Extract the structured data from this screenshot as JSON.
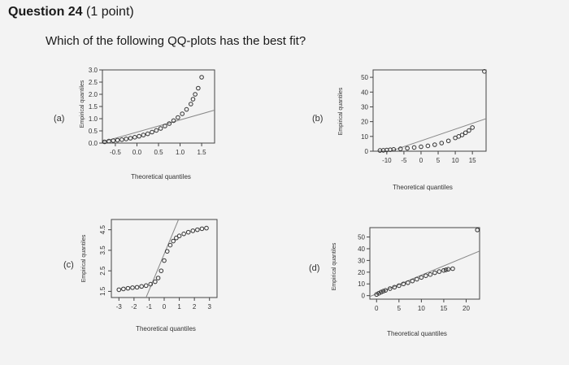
{
  "question": {
    "title": "Question 24",
    "points": "(1 point)",
    "text": "Which of the following QQ-plots has the best fit?"
  },
  "options": [
    "(a)",
    "(b)",
    "(c)",
    "(d)"
  ],
  "colors": {
    "background": "#f3f3f3",
    "points": "#333333",
    "reference_line": "#888888"
  },
  "chart_data": [
    {
      "type": "scatter",
      "option": "(a)",
      "xlabel": "Theoretical quantiles",
      "ylabel": "Empirical quantiles",
      "xlim": [
        -0.8,
        1.8
      ],
      "ylim": [
        0.0,
        3.0
      ],
      "xticks": [
        "-0.5",
        "0.0",
        "0.5",
        "1.0",
        "1.5"
      ],
      "yticks": [
        "0.0",
        "0.5",
        "1.0",
        "1.5",
        "2.0",
        "2.5",
        "3.0"
      ],
      "line": {
        "x": [
          -0.8,
          1.8
        ],
        "y": [
          0.05,
          1.35
        ]
      },
      "points": {
        "x": [
          -0.75,
          -0.65,
          -0.55,
          -0.45,
          -0.35,
          -0.25,
          -0.15,
          -0.05,
          0.05,
          0.15,
          0.25,
          0.35,
          0.45,
          0.55,
          0.65,
          0.75,
          0.85,
          0.95,
          1.05,
          1.15,
          1.25,
          1.3,
          1.35,
          1.42,
          1.5
        ],
        "y": [
          0.05,
          0.08,
          0.1,
          0.12,
          0.14,
          0.17,
          0.2,
          0.24,
          0.28,
          0.33,
          0.38,
          0.45,
          0.52,
          0.6,
          0.7,
          0.8,
          0.92,
          1.05,
          1.2,
          1.38,
          1.6,
          1.8,
          2.0,
          2.25,
          2.7
        ]
      }
    },
    {
      "type": "scatter",
      "option": "(b)",
      "xlabel": "Theoretical quantiles",
      "ylabel": "Empirical quantiles",
      "xlim": [
        -14,
        19
      ],
      "ylim": [
        0,
        55
      ],
      "xticks": [
        "-10",
        "-5",
        "0",
        "5",
        "10",
        "15"
      ],
      "yticks": [
        "0",
        "10",
        "20",
        "30",
        "40",
        "50"
      ],
      "line": {
        "x": [
          -14,
          19
        ],
        "y": [
          -4,
          22
        ]
      },
      "points": {
        "x": [
          -12,
          -11,
          -10,
          -9,
          -8,
          -6,
          -4,
          -2,
          0,
          2,
          4,
          6,
          8,
          10,
          11,
          12,
          13,
          14,
          15,
          18.5
        ],
        "y": [
          0.5,
          0.6,
          0.8,
          1,
          1.2,
          1.6,
          2,
          2.5,
          3,
          3.6,
          4.4,
          5.5,
          7,
          9,
          10,
          11,
          12.5,
          14,
          16,
          54
        ]
      }
    },
    {
      "type": "scatter",
      "option": "(c)",
      "xlabel": "Theoretical quantiles",
      "ylabel": "Empirical quantiles",
      "xlim": [
        -3.5,
        3.5
      ],
      "ylim": [
        1.2,
        5.0
      ],
      "xticks": [
        "-3",
        "-2",
        "-1",
        "0",
        "1",
        "2",
        "3"
      ],
      "yticks": [
        "1.5",
        "2.5",
        "3.5",
        "4.5"
      ],
      "line": {
        "x": [
          -1.2,
          0.95
        ],
        "y": [
          1.2,
          5.0
        ]
      },
      "points": {
        "x": [
          -3,
          -2.7,
          -2.4,
          -2.1,
          -1.8,
          -1.5,
          -1.2,
          -0.9,
          -0.6,
          -0.4,
          -0.2,
          0,
          0.2,
          0.4,
          0.6,
          0.8,
          1.0,
          1.3,
          1.6,
          1.9,
          2.2,
          2.5,
          2.8
        ],
        "y": [
          1.58,
          1.62,
          1.65,
          1.68,
          1.7,
          1.74,
          1.78,
          1.85,
          1.97,
          2.15,
          2.5,
          3.0,
          3.45,
          3.75,
          3.95,
          4.1,
          4.2,
          4.3,
          4.38,
          4.45,
          4.5,
          4.55,
          4.58
        ]
      }
    },
    {
      "type": "scatter",
      "option": "(d)",
      "xlabel": "Theoretical quantiles",
      "ylabel": "Empirical quantiles",
      "xlim": [
        -1.5,
        23
      ],
      "ylim": [
        -3,
        58
      ],
      "xticks": [
        "0",
        "5",
        "10",
        "15",
        "20"
      ],
      "yticks": [
        "0",
        "10",
        "20",
        "30",
        "40",
        "50"
      ],
      "line": {
        "x": [
          -1.5,
          23
        ],
        "y": [
          -0.8,
          38
        ]
      },
      "points": {
        "x": [
          0,
          0.5,
          1,
          1.5,
          2,
          3,
          4,
          5,
          6,
          7,
          8,
          9,
          10,
          11,
          12,
          13,
          14,
          15,
          15.5,
          16,
          17,
          22.5
        ],
        "y": [
          1,
          2,
          3,
          3.8,
          4.5,
          6,
          7.2,
          8.5,
          10,
          11,
          12.5,
          14,
          15.5,
          17,
          18,
          19.5,
          20.5,
          21.5,
          22,
          22.5,
          23,
          56
        ]
      }
    }
  ]
}
